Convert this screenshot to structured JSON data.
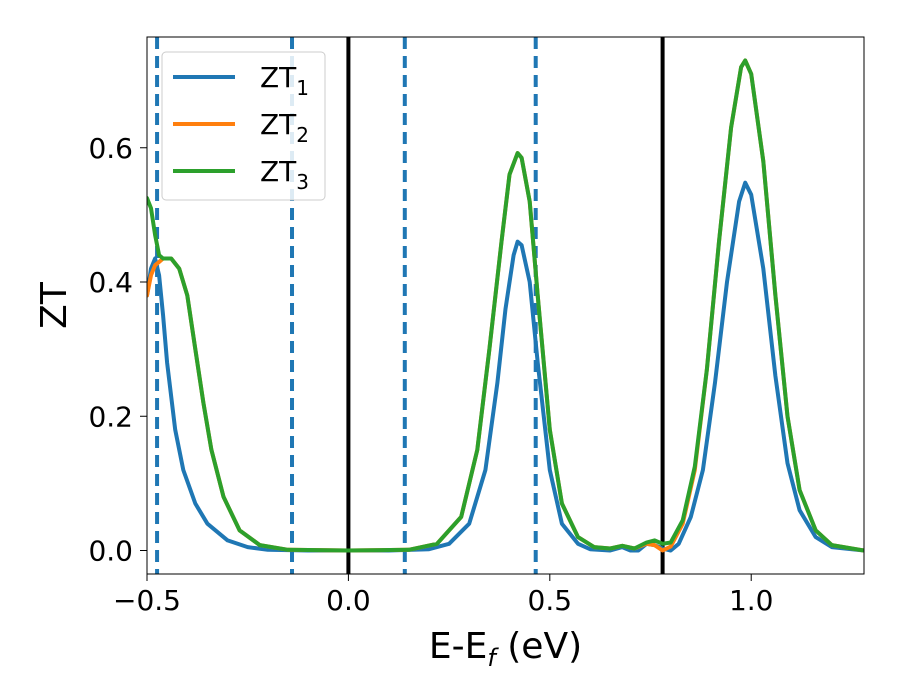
{
  "chart_data": {
    "type": "line",
    "title": "",
    "xlabel": "E-E",
    "xlabel_sub": "f",
    "xlabel_unit": " (eV)",
    "ylabel": "ZT",
    "xlim": [
      -0.5,
      1.28
    ],
    "ylim": [
      -0.035,
      0.765
    ],
    "xticks": [
      {
        "v": -0.5,
        "label": "−0.5"
      },
      {
        "v": 0.0,
        "label": "0.0"
      },
      {
        "v": 0.5,
        "label": "0.5"
      },
      {
        "v": 1.0,
        "label": "1.0"
      }
    ],
    "yticks": [
      {
        "v": 0.0,
        "label": "0.0"
      },
      {
        "v": 0.2,
        "label": "0.2"
      },
      {
        "v": 0.4,
        "label": "0.4"
      },
      {
        "v": 0.6,
        "label": "0.6"
      }
    ],
    "grid": false,
    "legend_position": "top-left",
    "vlines_solid": [
      0.0,
      0.78
    ],
    "vlines_dashed": [
      -0.475,
      -0.14,
      0.14,
      0.465
    ],
    "series": [
      {
        "name": "ZT",
        "name_sub": "1",
        "color": "#1f77b4",
        "points": [
          [
            -0.5,
            0.38
          ],
          [
            -0.49,
            0.42
          ],
          [
            -0.48,
            0.435
          ],
          [
            -0.47,
            0.41
          ],
          [
            -0.46,
            0.35
          ],
          [
            -0.45,
            0.28
          ],
          [
            -0.43,
            0.18
          ],
          [
            -0.41,
            0.12
          ],
          [
            -0.38,
            0.07
          ],
          [
            -0.35,
            0.04
          ],
          [
            -0.3,
            0.015
          ],
          [
            -0.25,
            0.005
          ],
          [
            -0.2,
            0.001
          ],
          [
            -0.1,
            0.0
          ],
          [
            0.0,
            0.0
          ],
          [
            0.1,
            0.0
          ],
          [
            0.2,
            0.002
          ],
          [
            0.25,
            0.01
          ],
          [
            0.3,
            0.04
          ],
          [
            0.34,
            0.12
          ],
          [
            0.37,
            0.25
          ],
          [
            0.39,
            0.36
          ],
          [
            0.41,
            0.44
          ],
          [
            0.42,
            0.46
          ],
          [
            0.43,
            0.455
          ],
          [
            0.45,
            0.4
          ],
          [
            0.47,
            0.28
          ],
          [
            0.5,
            0.12
          ],
          [
            0.53,
            0.04
          ],
          [
            0.57,
            0.01
          ],
          [
            0.6,
            0.002
          ],
          [
            0.65,
            0.0
          ],
          [
            0.68,
            0.005
          ],
          [
            0.7,
            0.0
          ],
          [
            0.72,
            0.0
          ],
          [
            0.74,
            0.01
          ],
          [
            0.76,
            0.008
          ],
          [
            0.78,
            0.003
          ],
          [
            0.8,
            0.0
          ],
          [
            0.82,
            0.01
          ],
          [
            0.85,
            0.05
          ],
          [
            0.88,
            0.12
          ],
          [
            0.91,
            0.25
          ],
          [
            0.94,
            0.4
          ],
          [
            0.97,
            0.52
          ],
          [
            0.985,
            0.548
          ],
          [
            1.0,
            0.53
          ],
          [
            1.03,
            0.42
          ],
          [
            1.06,
            0.26
          ],
          [
            1.09,
            0.13
          ],
          [
            1.12,
            0.06
          ],
          [
            1.16,
            0.02
          ],
          [
            1.2,
            0.005
          ],
          [
            1.28,
            0.0
          ]
        ]
      },
      {
        "name": "ZT",
        "name_sub": "2",
        "color": "#ff7f0e",
        "points": [
          [
            -0.5,
            0.38
          ],
          [
            -0.49,
            0.41
          ],
          [
            -0.48,
            0.425
          ],
          [
            -0.47,
            0.43
          ],
          [
            -0.46,
            0.435
          ],
          [
            -0.44,
            0.435
          ],
          [
            -0.42,
            0.42
          ],
          [
            -0.4,
            0.38
          ],
          [
            -0.38,
            0.3
          ],
          [
            -0.36,
            0.22
          ],
          [
            -0.34,
            0.15
          ],
          [
            -0.31,
            0.08
          ],
          [
            -0.27,
            0.03
          ],
          [
            -0.22,
            0.008
          ],
          [
            -0.15,
            0.001
          ],
          [
            0.0,
            0.0
          ],
          [
            0.15,
            0.001
          ],
          [
            0.22,
            0.01
          ],
          [
            0.28,
            0.05
          ],
          [
            0.32,
            0.15
          ],
          [
            0.35,
            0.3
          ],
          [
            0.38,
            0.46
          ],
          [
            0.4,
            0.56
          ],
          [
            0.42,
            0.592
          ],
          [
            0.43,
            0.585
          ],
          [
            0.45,
            0.52
          ],
          [
            0.47,
            0.38
          ],
          [
            0.5,
            0.18
          ],
          [
            0.53,
            0.07
          ],
          [
            0.57,
            0.02
          ],
          [
            0.61,
            0.005
          ],
          [
            0.65,
            0.003
          ],
          [
            0.68,
            0.007
          ],
          [
            0.71,
            0.003
          ],
          [
            0.74,
            0.01
          ],
          [
            0.76,
            0.008
          ],
          [
            0.78,
            0.0
          ],
          [
            0.8,
            0.006
          ],
          [
            0.83,
            0.04
          ],
          [
            0.86,
            0.12
          ],
          [
            0.89,
            0.27
          ],
          [
            0.92,
            0.46
          ],
          [
            0.95,
            0.63
          ],
          [
            0.975,
            0.72
          ],
          [
            0.985,
            0.73
          ],
          [
            1.0,
            0.71
          ],
          [
            1.03,
            0.58
          ],
          [
            1.06,
            0.38
          ],
          [
            1.09,
            0.2
          ],
          [
            1.12,
            0.09
          ],
          [
            1.16,
            0.03
          ],
          [
            1.2,
            0.008
          ],
          [
            1.28,
            0.0
          ]
        ]
      },
      {
        "name": "ZT",
        "name_sub": "3",
        "color": "#2ca02c",
        "points": [
          [
            -0.5,
            0.525
          ],
          [
            -0.49,
            0.51
          ],
          [
            -0.48,
            0.47
          ],
          [
            -0.47,
            0.44
          ],
          [
            -0.46,
            0.435
          ],
          [
            -0.44,
            0.435
          ],
          [
            -0.42,
            0.42
          ],
          [
            -0.4,
            0.38
          ],
          [
            -0.38,
            0.3
          ],
          [
            -0.36,
            0.22
          ],
          [
            -0.34,
            0.15
          ],
          [
            -0.31,
            0.08
          ],
          [
            -0.27,
            0.03
          ],
          [
            -0.22,
            0.008
          ],
          [
            -0.15,
            0.001
          ],
          [
            0.0,
            0.0
          ],
          [
            0.15,
            0.001
          ],
          [
            0.22,
            0.01
          ],
          [
            0.28,
            0.05
          ],
          [
            0.32,
            0.15
          ],
          [
            0.35,
            0.3
          ],
          [
            0.38,
            0.46
          ],
          [
            0.4,
            0.56
          ],
          [
            0.42,
            0.592
          ],
          [
            0.43,
            0.585
          ],
          [
            0.45,
            0.52
          ],
          [
            0.47,
            0.38
          ],
          [
            0.5,
            0.18
          ],
          [
            0.53,
            0.07
          ],
          [
            0.57,
            0.02
          ],
          [
            0.61,
            0.005
          ],
          [
            0.65,
            0.003
          ],
          [
            0.68,
            0.007
          ],
          [
            0.71,
            0.003
          ],
          [
            0.74,
            0.012
          ],
          [
            0.76,
            0.015
          ],
          [
            0.78,
            0.01
          ],
          [
            0.8,
            0.012
          ],
          [
            0.83,
            0.045
          ],
          [
            0.86,
            0.125
          ],
          [
            0.89,
            0.27
          ],
          [
            0.92,
            0.46
          ],
          [
            0.95,
            0.63
          ],
          [
            0.975,
            0.72
          ],
          [
            0.985,
            0.73
          ],
          [
            1.0,
            0.71
          ],
          [
            1.03,
            0.58
          ],
          [
            1.06,
            0.38
          ],
          [
            1.09,
            0.2
          ],
          [
            1.12,
            0.09
          ],
          [
            1.16,
            0.03
          ],
          [
            1.2,
            0.008
          ],
          [
            1.28,
            0.0
          ]
        ]
      }
    ]
  }
}
